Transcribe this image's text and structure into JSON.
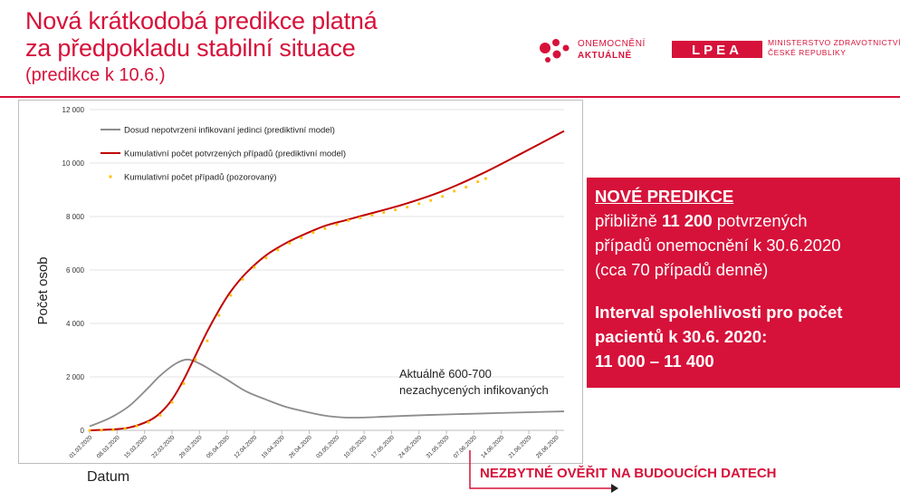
{
  "header": {
    "title_line1": "Nová krátkodobá predikce platná",
    "title_line2": "za předpokladu stabilní situace",
    "subtitle": "(predikce k 10.6.)"
  },
  "logos": {
    "oa_line1": "ONEMOCNĚNÍ",
    "oa_line2": "AKTUÁLNĚ",
    "mz_line1": "MINISTERSTVO ZDRAVOTNICTVÍ",
    "mz_line2": "ČESKÉ REPUBLIKY",
    "mz_mark": "LPEA"
  },
  "colors": {
    "brand_red": "#d6123a",
    "undetected": "#8c8c8c",
    "predicted": "#c00000",
    "observed": "#ffc000"
  },
  "chart_data": {
    "type": "line",
    "xlabel": "Datum",
    "ylabel": "Počet osob",
    "ylim": [
      0,
      12000
    ],
    "yticks": [
      "0",
      "2 000",
      "4 000",
      "6 000",
      "8 000",
      "10 000",
      "12 000"
    ],
    "xticks": [
      "01.03.2020",
      "08.03.2020",
      "15.03.2020",
      "22.03.2020",
      "29.03.2020",
      "05.04.2020",
      "12.04.2020",
      "19.04.2020",
      "26.04.2020",
      "03.05.2020",
      "10.05.2020",
      "17.05.2020",
      "24.05.2020",
      "31.05.2020",
      "07.06.2020",
      "14.06.2020",
      "21.06.2020",
      "28.06.2020"
    ],
    "xlim_days": [
      0,
      121
    ],
    "x_unit": "days since 01.03.2020",
    "legend_position": "top-left",
    "annotation": [
      "Aktuálně 600-700",
      "nezachycených infikovaných"
    ],
    "series": [
      {
        "name": "Dosud nepotvrzení infikovaní jedinci (prediktivní model)",
        "style": "line",
        "x": [
          0,
          5,
          10,
          15,
          18,
          22,
          25,
          28,
          31,
          35,
          40,
          45,
          50,
          55,
          60,
          65,
          70,
          75,
          80,
          90,
          100,
          110,
          121
        ],
        "y": [
          150,
          450,
          900,
          1600,
          2050,
          2500,
          2650,
          2500,
          2250,
          1900,
          1450,
          1150,
          880,
          700,
          550,
          480,
          480,
          510,
          540,
          590,
          630,
          670,
          710
        ]
      },
      {
        "name": "Kumulativní počet potvrzených případů (prediktivní model)",
        "style": "line",
        "x": [
          0,
          5,
          10,
          15,
          18,
          21,
          24,
          27,
          30,
          33,
          36,
          40,
          45,
          50,
          55,
          60,
          65,
          70,
          80,
          90,
          100,
          110,
          121
        ],
        "y": [
          0,
          30,
          100,
          350,
          650,
          1150,
          1900,
          2800,
          3700,
          4500,
          5200,
          5900,
          6550,
          7000,
          7350,
          7650,
          7850,
          8050,
          8450,
          8950,
          9600,
          10350,
          11200
        ]
      },
      {
        "name": "Kumulativní počet případů (pozorovaný)",
        "style": "dots",
        "x": [
          0,
          3,
          6,
          9,
          12,
          15,
          18,
          21,
          24,
          27,
          30,
          33,
          36,
          39,
          42,
          45,
          48,
          51,
          54,
          57,
          60,
          63,
          66,
          69,
          72,
          75,
          78,
          81,
          84,
          87,
          90,
          93,
          96,
          99,
          101
        ],
        "y": [
          0,
          5,
          20,
          70,
          160,
          300,
          560,
          1050,
          1750,
          2650,
          3350,
          4300,
          5050,
          5650,
          6100,
          6450,
          6750,
          7000,
          7200,
          7400,
          7550,
          7700,
          7850,
          7950,
          8050,
          8150,
          8250,
          8350,
          8480,
          8600,
          8750,
          8950,
          9100,
          9300,
          9420
        ]
      }
    ]
  },
  "infobox": {
    "heading": "NOVÉ PREDIKCE",
    "line1_pre": "přibližně ",
    "line1_bold": "11 200",
    "line1_post": " potvrzených",
    "line2": "případů onemocnění k 30.6.2020",
    "line3": "(cca 70 případů denně)",
    "interval_line1": "Interval spolehlivosti pro počet",
    "interval_line2": "pacientů k 30.6. 2020:",
    "interval_line3": "11 000 – 11 400"
  },
  "footer": {
    "verify_note": "NEZBYTNÉ OVĚŘIT NA BUDOUCÍCH DATECH"
  }
}
